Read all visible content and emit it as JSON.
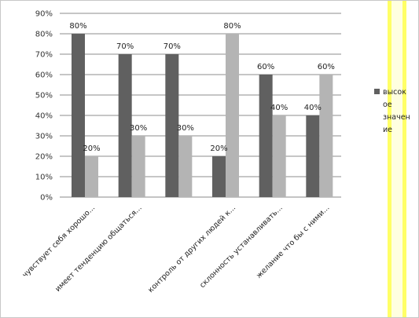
{
  "chart_data": {
    "type": "bar",
    "categories": [
      "чувствует себя хорошо...",
      "имеет тенденцию общаться...",
      "",
      "контроль от других людей к...",
      "склонность устанавливать...",
      "желание что бы с ними..."
    ],
    "series": [
      {
        "name": "высокое значение",
        "color": "#606060",
        "values": [
          80,
          70,
          70,
          20,
          60,
          40
        ],
        "labels": [
          "80%",
          "70%",
          "70%",
          "20%",
          "60%",
          "40%"
        ]
      },
      {
        "name": "",
        "color": "#b4b4b4",
        "values": [
          20,
          30,
          30,
          80,
          40,
          60
        ],
        "labels": [
          "20%",
          "30%",
          "30%",
          "80%",
          "40%",
          "60%"
        ]
      }
    ],
    "ylim": [
      0,
      90
    ],
    "yticks": [
      0,
      10,
      20,
      30,
      40,
      50,
      60,
      70,
      80,
      90
    ],
    "ytick_labels": [
      "0%",
      "10%",
      "20%",
      "30%",
      "40%",
      "50%",
      "60%",
      "70%",
      "80%",
      "90%"
    ],
    "grid": true,
    "legend": {
      "placement": "right",
      "lines": [
        "высок",
        "ое",
        "значен",
        "ие"
      ]
    },
    "title": "",
    "xlabel": "",
    "ylabel": ""
  },
  "decor": {
    "stripe_color": "#ffff66",
    "stripe_inner_color": "#ffffe0"
  }
}
